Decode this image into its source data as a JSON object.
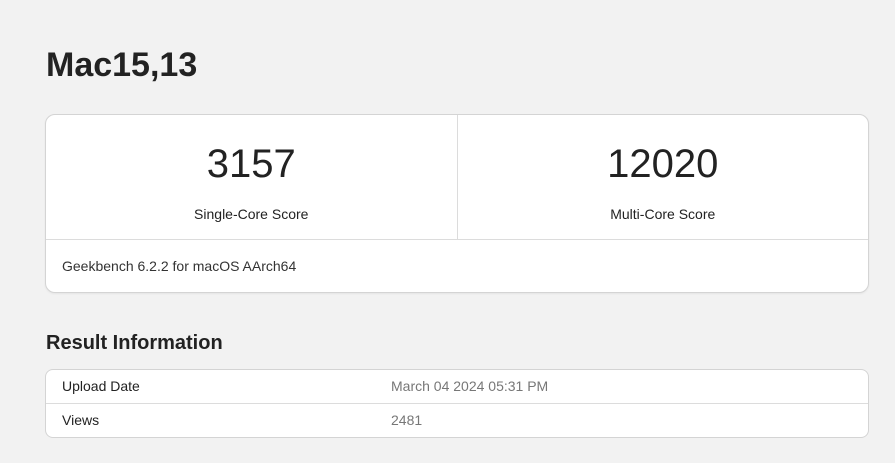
{
  "page": {
    "title": "Mac15,13"
  },
  "scores": [
    {
      "value": "3157",
      "label": "Single-Core Score"
    },
    {
      "value": "12020",
      "label": "Multi-Core Score"
    }
  ],
  "benchmark_info": "Geekbench 6.2.2 for macOS AArch64",
  "result_information": {
    "heading": "Result Information",
    "rows": [
      {
        "label": "Upload Date",
        "value": "March 04 2024 05:31 PM"
      },
      {
        "label": "Views",
        "value": "2481"
      }
    ]
  }
}
